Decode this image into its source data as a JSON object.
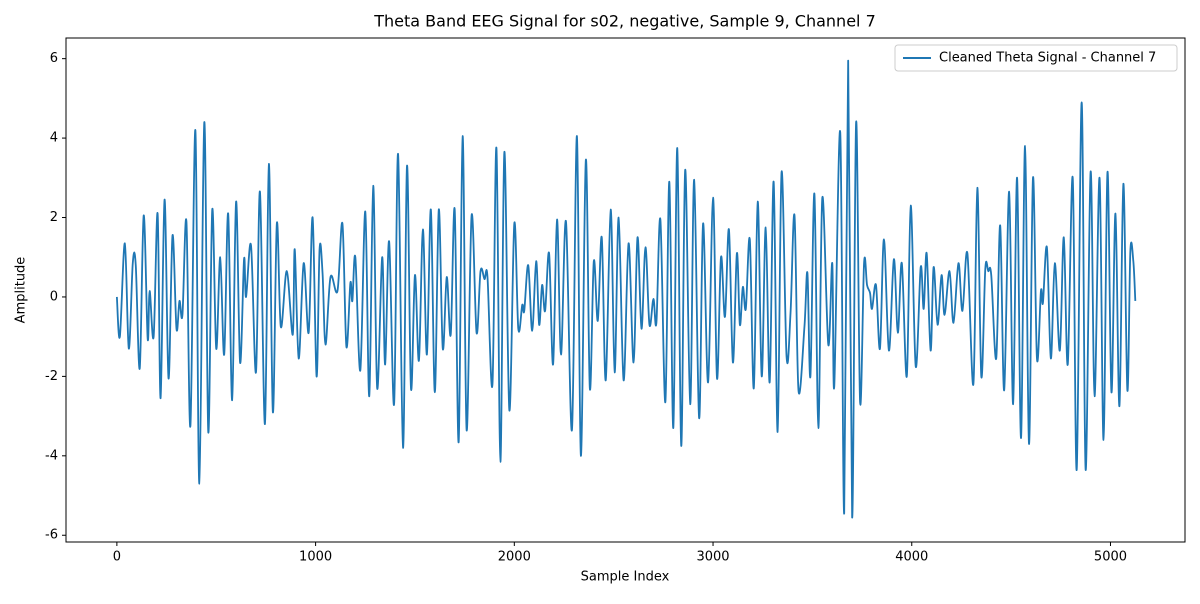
{
  "chart_data": {
    "type": "line",
    "title": "Theta Band EEG Signal for s02, negative, Sample 9, Channel 7",
    "x_label": "Sample Index",
    "y_label": "Amplitude",
    "x": [
      0,
      15,
      40,
      60,
      80,
      95,
      115,
      135,
      155,
      165,
      185,
      205,
      220,
      240,
      260,
      280,
      300,
      315,
      330,
      350,
      370,
      395,
      415,
      440,
      460,
      480,
      500,
      520,
      540,
      560,
      580,
      600,
      620,
      640,
      650,
      675,
      700,
      720,
      745,
      765,
      785,
      805,
      825,
      855,
      885,
      895,
      915,
      940,
      965,
      985,
      1005,
      1020,
      1035,
      1050,
      1075,
      1110,
      1135,
      1155,
      1175,
      1185,
      1200,
      1225,
      1250,
      1270,
      1290,
      1310,
      1335,
      1350,
      1370,
      1395,
      1415,
      1440,
      1460,
      1480,
      1500,
      1520,
      1540,
      1560,
      1580,
      1600,
      1620,
      1640,
      1660,
      1680,
      1700,
      1720,
      1740,
      1760,
      1785,
      1810,
      1830,
      1850,
      1865,
      1890,
      1910,
      1930,
      1950,
      1975,
      2000,
      2020,
      2040,
      2050,
      2070,
      2090,
      2110,
      2125,
      2140,
      2155,
      2175,
      2195,
      2215,
      2235,
      2260,
      2290,
      2315,
      2335,
      2360,
      2380,
      2400,
      2420,
      2440,
      2460,
      2485,
      2505,
      2525,
      2550,
      2575,
      2600,
      2620,
      2640,
      2660,
      2680,
      2700,
      2715,
      2735,
      2760,
      2780,
      2800,
      2820,
      2840,
      2860,
      2885,
      2905,
      2930,
      2950,
      2975,
      3000,
      3020,
      3040,
      3060,
      3080,
      3100,
      3120,
      3135,
      3150,
      3165,
      3185,
      3205,
      3225,
      3245,
      3265,
      3285,
      3305,
      3325,
      3345,
      3370,
      3390,
      3410,
      3430,
      3460,
      3475,
      3490,
      3510,
      3530,
      3550,
      3580,
      3600,
      3610,
      3640,
      3660,
      3680,
      3700,
      3720,
      3740,
      3760,
      3775,
      3790,
      3800,
      3820,
      3840,
      3860,
      3885,
      3910,
      3930,
      3950,
      3975,
      3995,
      4020,
      4045,
      4060,
      4075,
      4095,
      4110,
      4130,
      4150,
      4165,
      4190,
      4210,
      4235,
      4255,
      4280,
      4310,
      4330,
      4350,
      4370,
      4385,
      4400,
      4425,
      4445,
      4465,
      4490,
      4510,
      4530,
      4550,
      4570,
      4590,
      4610,
      4630,
      4650,
      4660,
      4680,
      4700,
      4720,
      4745,
      4765,
      4785,
      4810,
      4830,
      4855,
      4875,
      4900,
      4920,
      4945,
      4965,
      4985,
      5005,
      5025,
      5045,
      5065,
      5085,
      5100,
      5115,
      5125
    ],
    "series": [
      {
        "name": "Cleaned Theta Signal - Channel 7",
        "color": "#1f77b4",
        "values": [
          0,
          -1.0,
          1.35,
          -1.3,
          0.85,
          0.8,
          -1.8,
          2.05,
          -1.05,
          0.15,
          -1.0,
          2.1,
          -2.55,
          2.45,
          -2.05,
          1.55,
          -0.8,
          -0.1,
          -0.45,
          1.9,
          -3.25,
          4.2,
          -4.7,
          4.4,
          -3.4,
          2.2,
          -1.3,
          1.0,
          -1.45,
          2.1,
          -2.6,
          2.4,
          -1.65,
          0.95,
          0.0,
          1.3,
          -1.9,
          2.65,
          -3.2,
          3.35,
          -2.9,
          1.85,
          -0.75,
          0.65,
          -0.95,
          1.2,
          -1.55,
          0.85,
          -0.9,
          2.0,
          -2.0,
          1.2,
          0.6,
          -1.2,
          0.5,
          0.15,
          1.85,
          -1.25,
          0.35,
          -0.1,
          1.0,
          -1.85,
          2.15,
          -2.5,
          2.8,
          -2.3,
          1.0,
          -1.7,
          1.4,
          -2.7,
          3.6,
          -3.8,
          3.3,
          -2.3,
          0.55,
          -1.6,
          1.7,
          -1.45,
          2.2,
          -2.4,
          2.2,
          -1.3,
          0.5,
          -0.95,
          2.2,
          -3.65,
          4.05,
          -3.35,
          2.05,
          -0.9,
          0.65,
          0.45,
          0.5,
          -2.2,
          3.75,
          -4.15,
          3.65,
          -2.85,
          1.85,
          -0.8,
          -0.2,
          -0.35,
          0.8,
          -0.85,
          0.9,
          -0.7,
          0.3,
          -0.35,
          1.1,
          -1.7,
          1.95,
          -1.45,
          1.9,
          -3.35,
          4.05,
          -4.0,
          3.45,
          -2.3,
          0.9,
          -0.6,
          1.5,
          -2.1,
          2.2,
          -1.9,
          2.0,
          -2.1,
          1.35,
          -1.65,
          1.5,
          -0.8,
          1.25,
          -0.7,
          -0.05,
          -0.65,
          1.95,
          -2.65,
          2.9,
          -3.3,
          3.75,
          -3.75,
          3.2,
          -2.7,
          2.95,
          -3.05,
          1.85,
          -2.15,
          2.5,
          -2.05,
          1.0,
          -0.5,
          1.7,
          -1.65,
          1.1,
          -0.7,
          0.25,
          -0.3,
          1.45,
          -2.3,
          2.4,
          -2.0,
          1.75,
          -2.15,
          2.9,
          -3.4,
          3.15,
          -1.5,
          -0.4,
          2.05,
          -2.35,
          -0.75,
          0.6,
          -2.0,
          2.6,
          -3.3,
          2.5,
          -1.2,
          0.85,
          -2.25,
          4.15,
          -5.45,
          5.95,
          -5.55,
          4.4,
          -2.65,
          0.85,
          0.3,
          0.1,
          -0.3,
          0.3,
          -1.3,
          1.45,
          -1.35,
          0.95,
          -0.9,
          0.85,
          -2.0,
          2.3,
          -1.75,
          0.75,
          -0.3,
          1.1,
          -1.35,
          0.75,
          -0.7,
          0.55,
          -0.45,
          0.65,
          -0.65,
          0.85,
          -0.35,
          1.1,
          -2.2,
          2.75,
          -2.0,
          0.7,
          0.65,
          0.55,
          -1.55,
          1.8,
          -2.35,
          2.65,
          -2.7,
          3.0,
          -3.55,
          3.8,
          -3.7,
          3.0,
          -1.55,
          0.15,
          -0.15,
          1.25,
          -1.55,
          0.85,
          -1.35,
          1.5,
          -1.7,
          3.0,
          -4.35,
          4.9,
          -4.35,
          3.15,
          -2.5,
          3.0,
          -3.6,
          3.15,
          -2.4,
          2.1,
          -2.75,
          2.85,
          -2.35,
          1.15,
          0.9,
          -0.1
        ]
      }
    ],
    "xlim": [
      -256,
      5375
    ],
    "xticks": [
      0,
      1000,
      2000,
      3000,
      4000,
      5000
    ],
    "ylim": [
      -6.17,
      6.52
    ],
    "yticks": [
      -6,
      -4,
      -2,
      0,
      2,
      4,
      6
    ],
    "legend": "upper right",
    "grid": false
  }
}
